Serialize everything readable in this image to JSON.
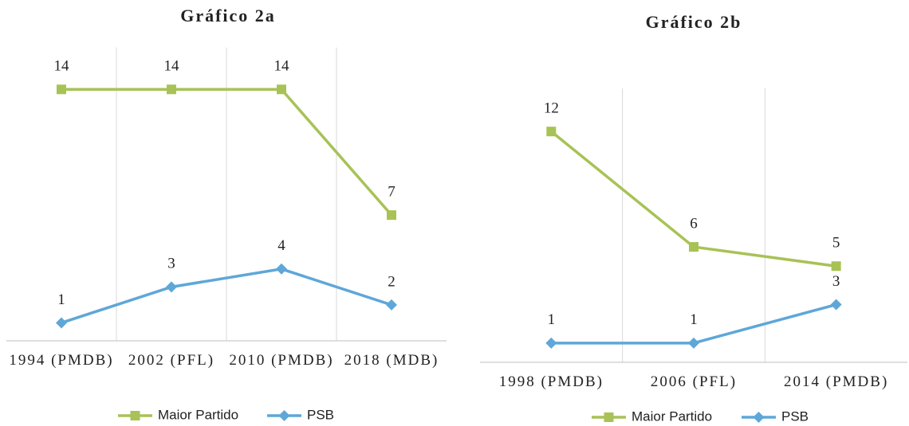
{
  "chart_data": [
    {
      "type": "line",
      "title": "Gráfico 2a",
      "categories": [
        "1994 (PMDB)",
        "2002 (PFL)",
        "2010 (PMDB)",
        "2018 (MDB)"
      ],
      "series": [
        {
          "name": "Maior Partido",
          "color": "#a8c256",
          "marker": "square",
          "values": [
            14,
            14,
            14,
            7
          ]
        },
        {
          "name": "PSB",
          "color": "#5ea7d8",
          "marker": "diamond",
          "values": [
            1,
            3,
            4,
            2
          ]
        }
      ],
      "ylim": [
        0,
        15
      ],
      "grid": true,
      "legend": "bottom"
    },
    {
      "type": "line",
      "title": "Gráfico 2b",
      "categories": [
        "1998 (PMDB)",
        "2006 (PFL)",
        "2014 (PMDB)"
      ],
      "series": [
        {
          "name": "Maior Partido",
          "color": "#a8c256",
          "marker": "square",
          "values": [
            12,
            6,
            5
          ]
        },
        {
          "name": "PSB",
          "color": "#5ea7d8",
          "marker": "diamond",
          "values": [
            1,
            1,
            3
          ]
        }
      ],
      "ylim": [
        0,
        13
      ],
      "grid": true,
      "legend": "bottom"
    }
  ]
}
